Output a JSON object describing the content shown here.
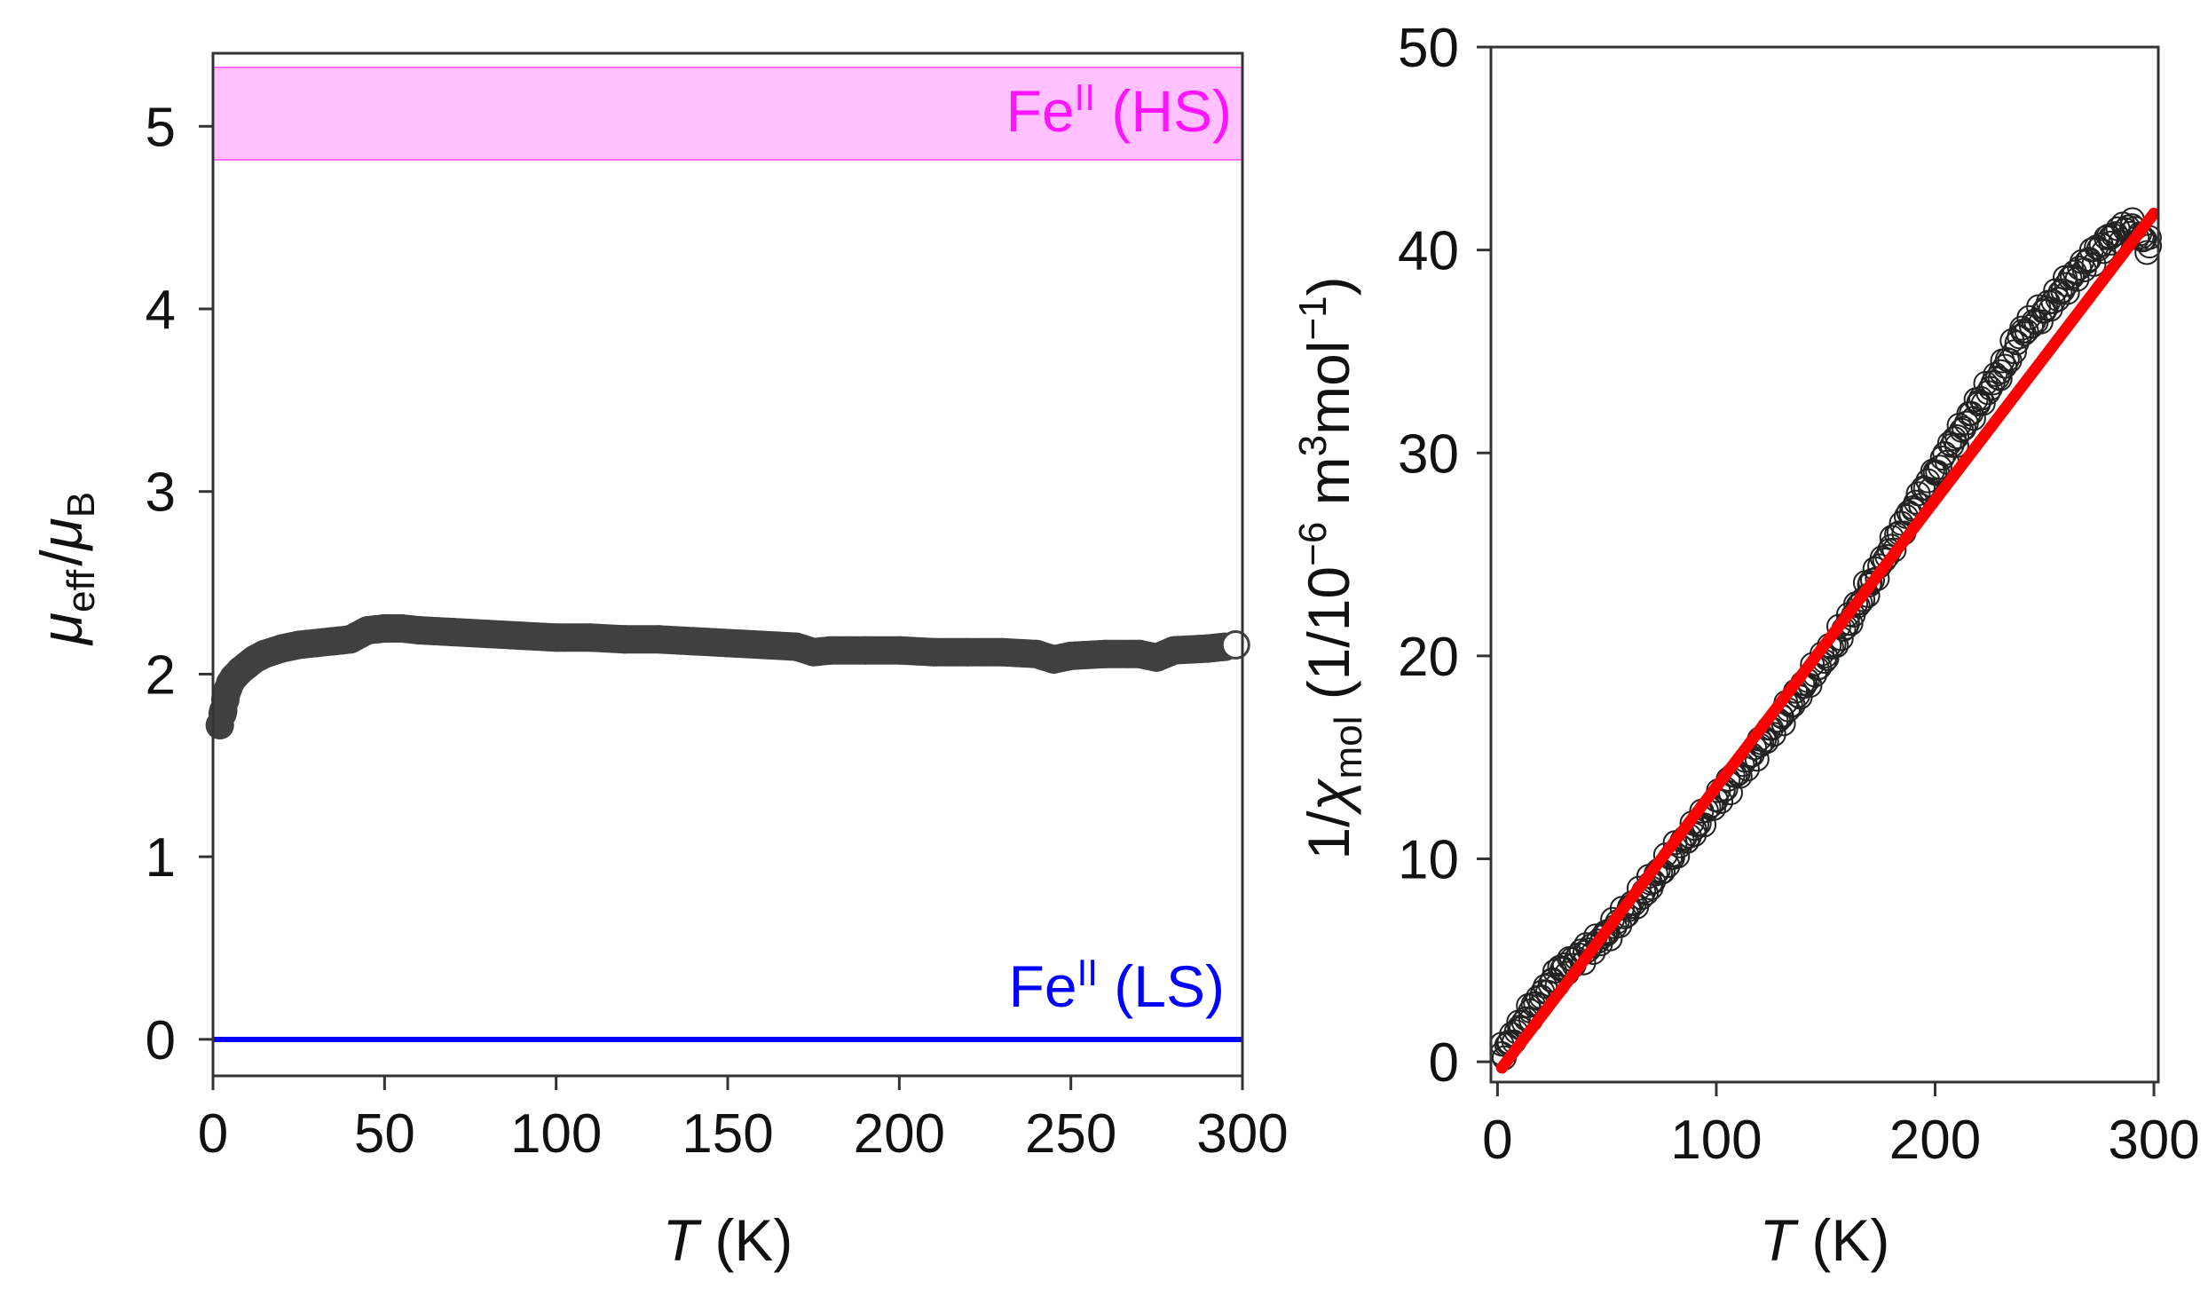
{
  "chart_data": [
    {
      "id": "left",
      "type": "scatter",
      "xlabel": {
        "var": "T",
        "unit": " (K)"
      },
      "ylabel": {
        "mu": "μ",
        "eff": "eff",
        "slash": "/",
        "mu2": "μ",
        "B": "B"
      },
      "xlim": [
        0,
        300
      ],
      "ylim": [
        -0.2,
        5.4
      ],
      "xticks": [
        0,
        50,
        100,
        150,
        200,
        250,
        300
      ],
      "yticks": [
        0,
        1,
        2,
        3,
        4,
        5
      ],
      "hs_band": {
        "low": 4.9,
        "high": 5.4,
        "color": "#ff6cff",
        "label_base": "Fe",
        "label_sup": "II",
        "label_rest": " (HS)",
        "text_color": "#ff14ff"
      },
      "ls_line": {
        "value": 0,
        "color": "#0000ff",
        "label_base": "Fe",
        "label_sup": "II",
        "label_rest": " (LS)",
        "text_color": "#0000ff"
      },
      "series": [
        {
          "name": "mu_eff",
          "marker_color": "#404040",
          "x": [
            2,
            3,
            4,
            5,
            6,
            8,
            10,
            12,
            15,
            20,
            25,
            30,
            35,
            40,
            45,
            50,
            55,
            60,
            70,
            80,
            90,
            100,
            110,
            120,
            130,
            140,
            150,
            160,
            170,
            175,
            180,
            190,
            200,
            210,
            220,
            230,
            240,
            245,
            250,
            260,
            270,
            275,
            280,
            290,
            295
          ],
          "y": [
            1.72,
            1.8,
            1.9,
            1.95,
            1.98,
            2.02,
            2.05,
            2.08,
            2.11,
            2.14,
            2.16,
            2.17,
            2.18,
            2.19,
            2.24,
            2.25,
            2.25,
            2.24,
            2.23,
            2.22,
            2.21,
            2.2,
            2.2,
            2.19,
            2.19,
            2.18,
            2.17,
            2.16,
            2.15,
            2.12,
            2.13,
            2.13,
            2.13,
            2.12,
            2.12,
            2.12,
            2.11,
            2.08,
            2.1,
            2.11,
            2.11,
            2.09,
            2.13,
            2.14,
            2.15
          ]
        }
      ],
      "last_point": {
        "x": 298,
        "y": 2.16
      }
    },
    {
      "id": "right",
      "type": "scatter",
      "xlabel": {
        "var": "T",
        "unit": " (K)"
      },
      "ylabel": {
        "one": "1/",
        "chi": "χ",
        "mol": "mol",
        "open": " (1/10",
        "e1": "−6",
        "m": " m",
        "e2": "3",
        "molw": "mol",
        "e3": "−1",
        "close": ")"
      },
      "xlim": [
        -3,
        302
      ],
      "ylim": [
        -1,
        50
      ],
      "xticks": [
        0,
        100,
        200,
        300
      ],
      "yticks": [
        0,
        10,
        20,
        30,
        40,
        50
      ],
      "series": [
        {
          "name": "inverse_chi",
          "marker": "open-circle",
          "x": [
            2,
            5,
            10,
            15,
            20,
            25,
            30,
            40,
            50,
            60,
            70,
            80,
            90,
            100,
            110,
            120,
            130,
            140,
            150,
            160,
            170,
            180,
            190,
            200,
            210,
            220,
            230,
            240,
            250,
            260,
            270,
            280,
            290,
            295,
            298
          ],
          "y": [
            0.4,
            0.9,
            1.7,
            2.5,
            3.2,
            4.0,
            4.6,
            5.4,
            6.3,
            7.5,
            8.8,
            10.2,
            11.5,
            12.9,
            14.2,
            15.6,
            17.0,
            18.5,
            20.0,
            21.6,
            23.5,
            25.4,
            27.3,
            29.0,
            30.8,
            32.5,
            34.0,
            36.0,
            37.0,
            38.3,
            39.5,
            40.6,
            41.2,
            40.5,
            40.2
          ]
        }
      ],
      "fit": {
        "color": "#ff0000",
        "x": [
          2,
          300
        ],
        "y": [
          -0.3,
          41.8
        ]
      }
    }
  ]
}
